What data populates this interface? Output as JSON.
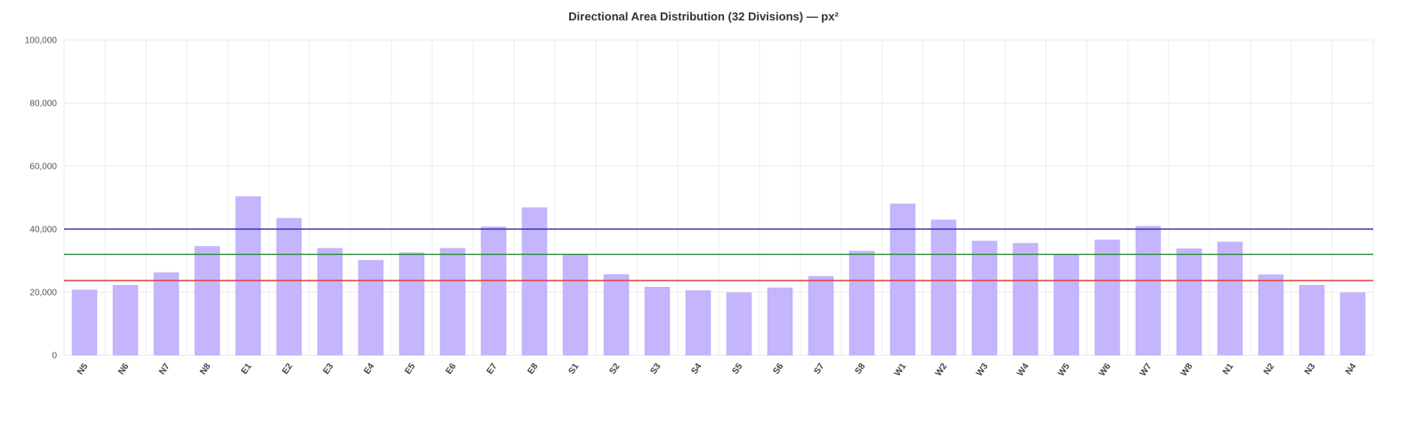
{
  "chart_data": {
    "type": "bar",
    "title": "Directional Area Distribution (32 Divisions) — px²",
    "xlabel": "",
    "ylabel": "",
    "ylim": [
      0,
      100000
    ],
    "yticks": [
      0,
      20000,
      40000,
      60000,
      80000,
      100000
    ],
    "ytick_labels": [
      "0",
      "20,000",
      "40,000",
      "60,000",
      "80,000",
      "100,000"
    ],
    "grid": true,
    "categories": [
      "N5",
      "N6",
      "N7",
      "N8",
      "E1",
      "E2",
      "E3",
      "E4",
      "E5",
      "E6",
      "E7",
      "E8",
      "S1",
      "S2",
      "S3",
      "S4",
      "S5",
      "S6",
      "S7",
      "S8",
      "W1",
      "W2",
      "W3",
      "W4",
      "W5",
      "W6",
      "W7",
      "W8",
      "N1",
      "N2",
      "N3",
      "N4"
    ],
    "values": [
      20700,
      22200,
      26200,
      34500,
      50300,
      43400,
      33900,
      30100,
      32500,
      33900,
      40700,
      46800,
      31700,
      25600,
      21600,
      20500,
      19800,
      21400,
      25000,
      33000,
      48000,
      42900,
      36200,
      35500,
      31900,
      36600,
      40900,
      33800,
      35900,
      25500,
      22200,
      19800
    ],
    "bar_color": "#c4b5fd",
    "reference_lines": [
      {
        "value": 40000,
        "color": "#3b3bb0"
      },
      {
        "value": 32000,
        "color": "#2e8b3a"
      },
      {
        "value": 23700,
        "color": "#e04040"
      }
    ]
  }
}
